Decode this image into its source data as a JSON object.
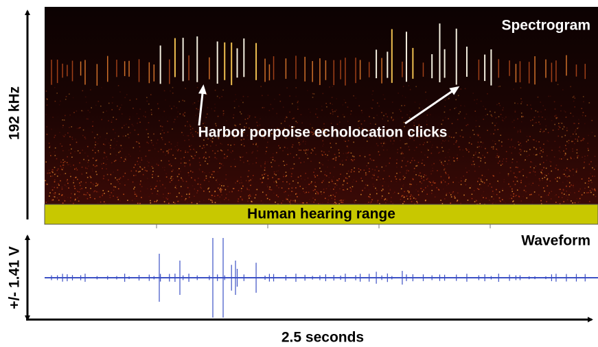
{
  "spectrogram": {
    "label": "Spectrogram",
    "y_axis_label": "192 kHz",
    "annotation": "Harbor porpoise echolocation clicks",
    "band_label": "Human hearing range"
  },
  "waveform": {
    "label": "Waveform",
    "y_axis_label": "+/- 1.41 V"
  },
  "x_axis_label": "2.5 seconds"
}
